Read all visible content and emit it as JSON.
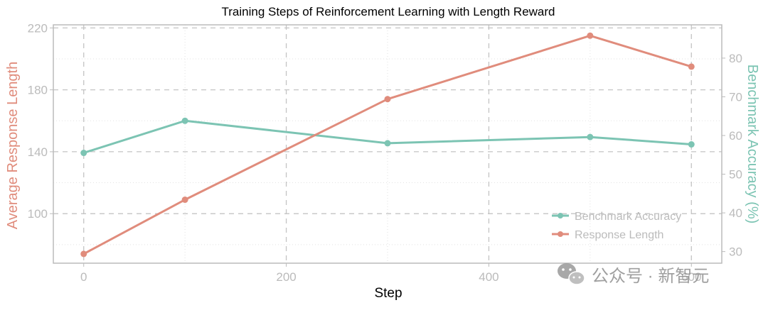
{
  "chart_data": {
    "type": "line",
    "title": "Training Steps of Reinforcement Learning with Length Reward",
    "xlabel": "Step",
    "ylabel_left": "Average Response Length",
    "ylabel_right": "Benchmark Accuracy (%)",
    "xlim": [
      -30,
      630
    ],
    "ylim_left": [
      68,
      222
    ],
    "ylim_right": [
      27,
      88.6
    ],
    "xticks": [
      0,
      200,
      400,
      600
    ],
    "xtick_labels": [
      "0",
      "200",
      "400",
      "600"
    ],
    "yticks_left": [
      100,
      140,
      180,
      220
    ],
    "ytick_labels_left": [
      "100",
      "140",
      "180",
      "220"
    ],
    "yticks_right": [
      30,
      40,
      50,
      60,
      70,
      80
    ],
    "ytick_labels_right": [
      "30",
      "40",
      "50",
      "60",
      "70",
      "80"
    ],
    "grid": true,
    "legend_position": "bottom-right",
    "series": [
      {
        "name": "Benchmark Accuracy",
        "axis": "right",
        "color": "#7cc4b3",
        "x": [
          0,
          100,
          300,
          500,
          600
        ],
        "y": [
          55.5,
          63.8,
          58.0,
          59.6,
          57.7
        ]
      },
      {
        "name": "Response Length",
        "axis": "left",
        "color": "#e08c7c",
        "x": [
          0,
          100,
          300,
          500,
          600
        ],
        "y": [
          74,
          109,
          174,
          215,
          195
        ]
      }
    ]
  },
  "watermark": {
    "text": "公众号 · 新智元",
    "icon": "wechat-icon"
  }
}
